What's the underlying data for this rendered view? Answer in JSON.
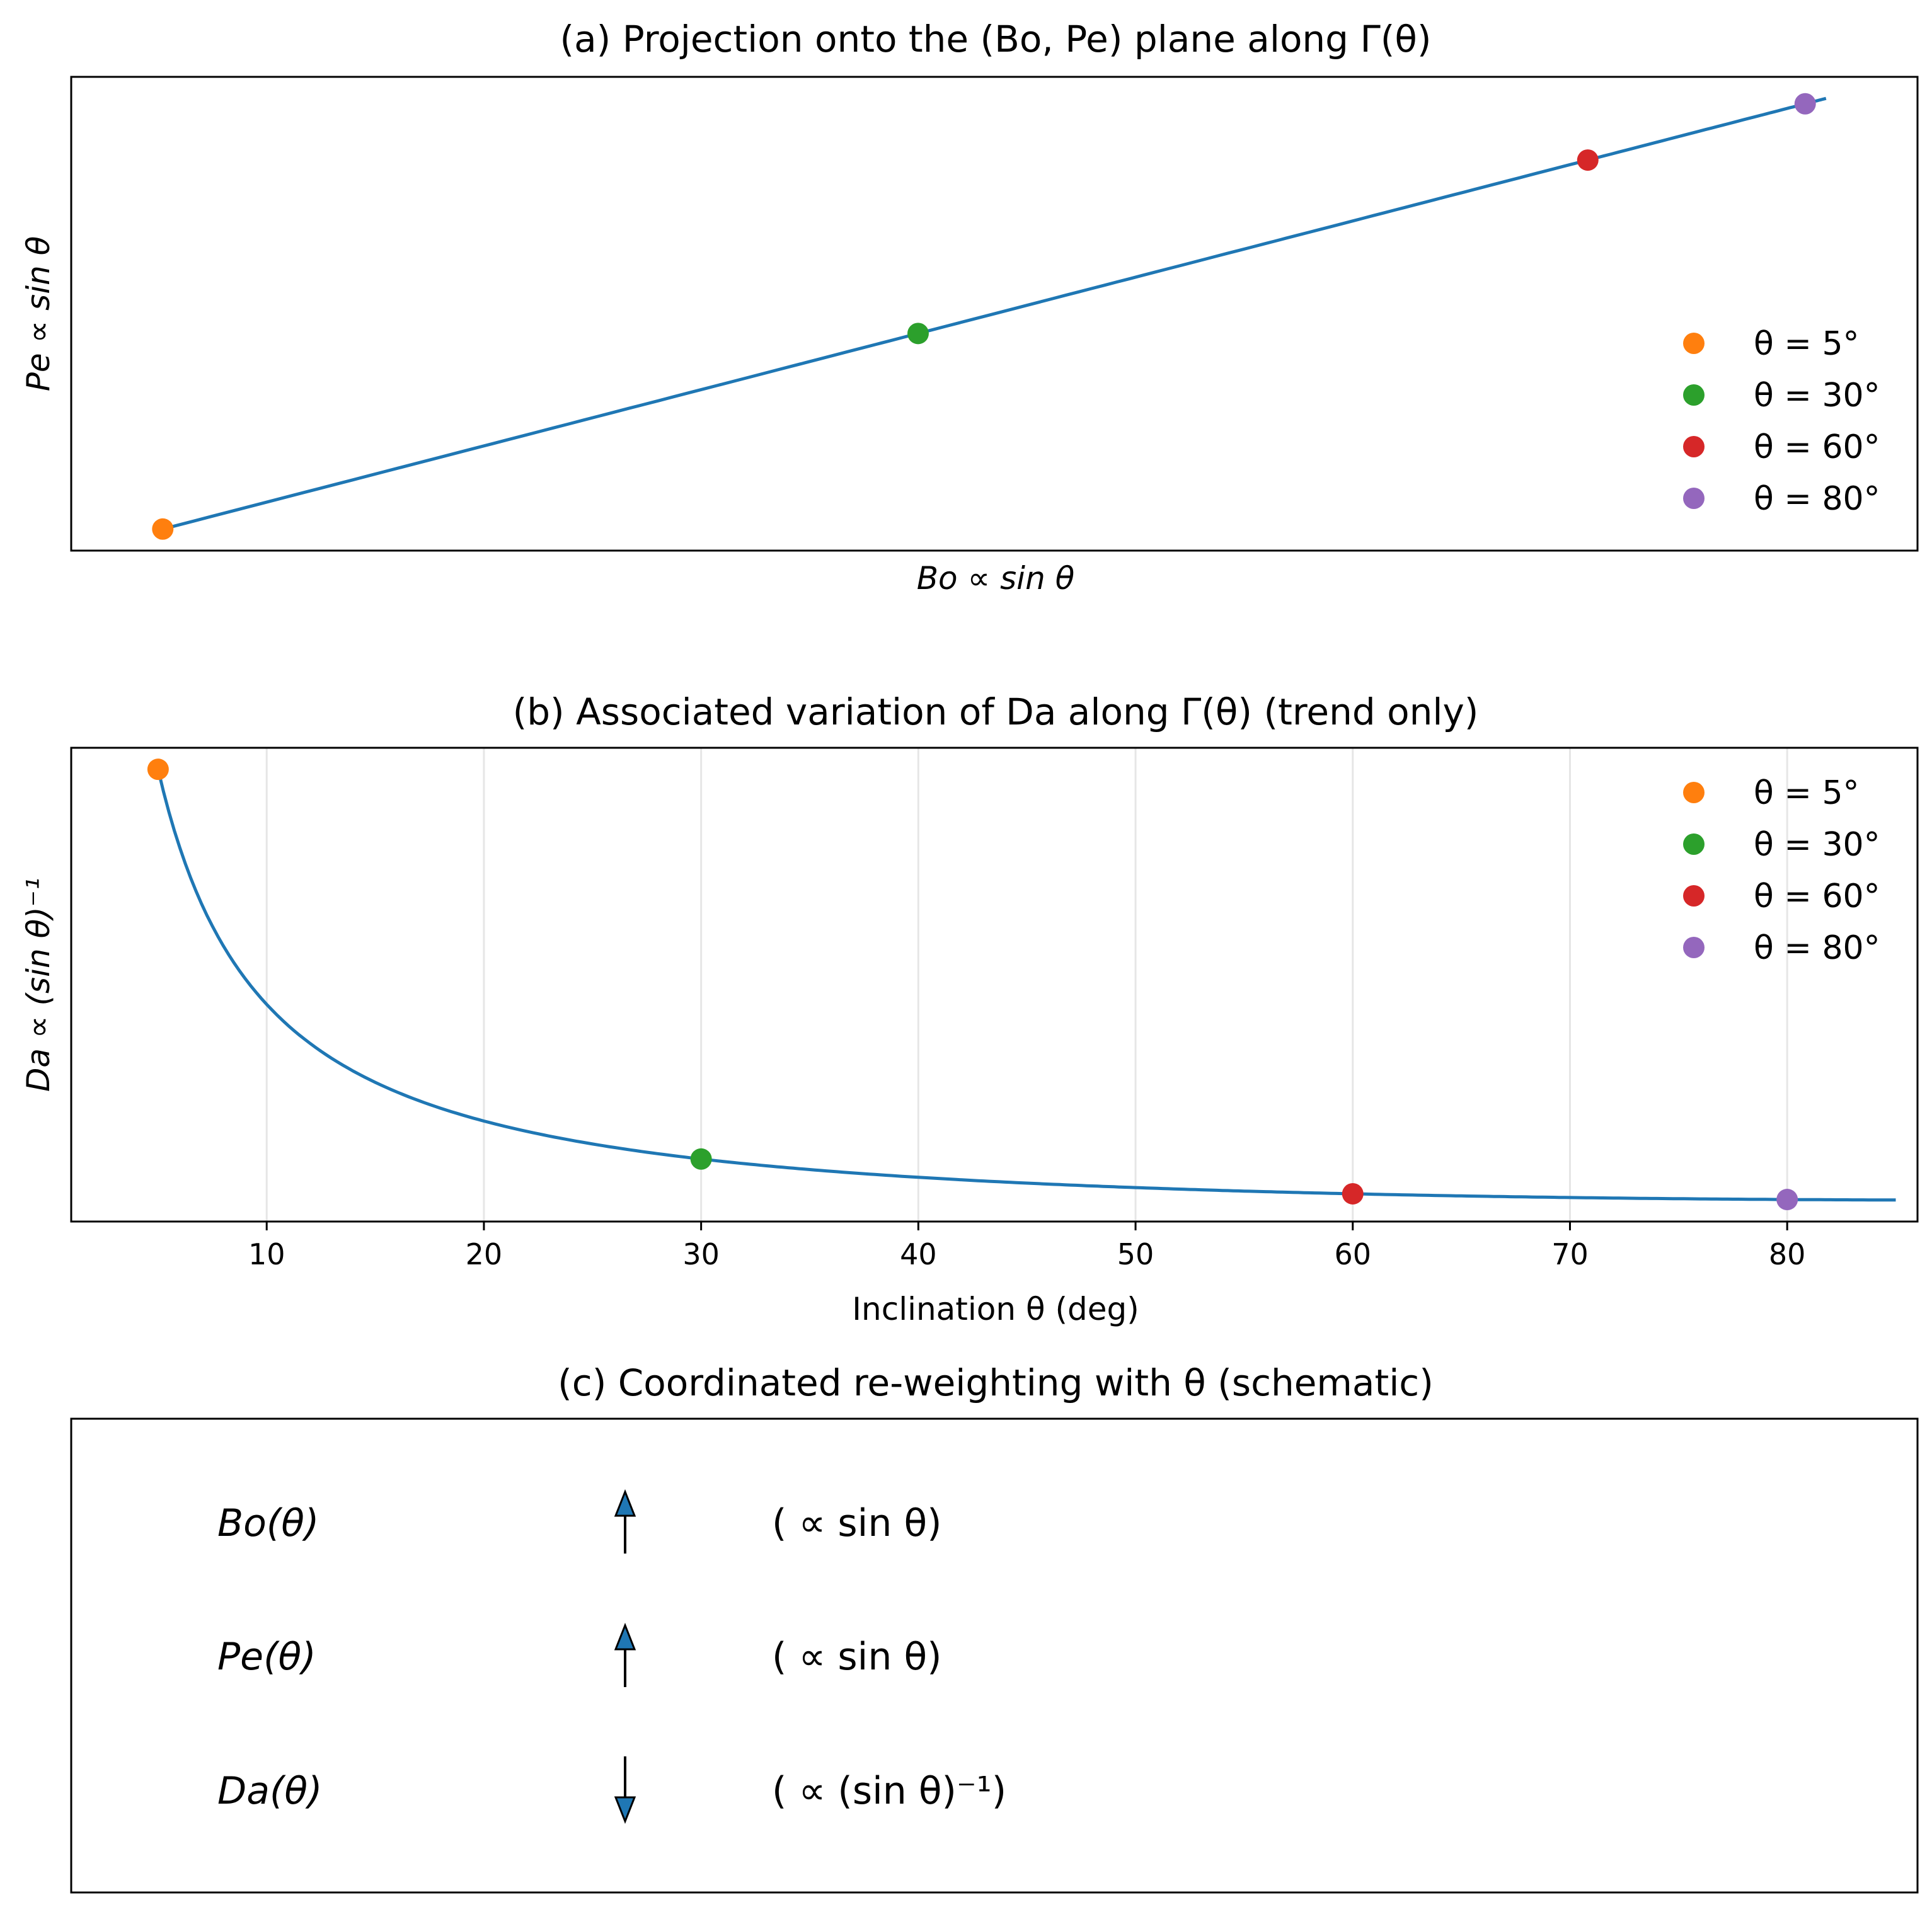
{
  "chart_data": [
    {
      "panel": "a",
      "type": "line",
      "title": "(a) Projection onto the (Bo, Pe) plane along Γ(θ)",
      "xlabel": "Bo ∝ sin θ",
      "ylabel": "Pe ∝ sin θ",
      "x_ticks": "none",
      "y_ticks": "none",
      "grid": false,
      "line_color": "#1f77b4",
      "curve": {
        "theta_deg_range": [
          5,
          85
        ],
        "x": "sin θ",
        "y": "sin θ"
      },
      "legend_position": "right",
      "markers": [
        {
          "label": "θ = 5°",
          "theta": 5,
          "x": 0.0872,
          "y": 0.0872,
          "color": "#ff7f0e"
        },
        {
          "label": "θ = 30°",
          "theta": 30,
          "x": 0.5,
          "y": 0.5,
          "color": "#2ca02c"
        },
        {
          "label": "θ = 60°",
          "theta": 60,
          "x": 0.866,
          "y": 0.866,
          "color": "#d62728"
        },
        {
          "label": "θ = 80°",
          "theta": 80,
          "x": 0.9848,
          "y": 0.9848,
          "color": "#9467bd"
        }
      ]
    },
    {
      "panel": "b",
      "type": "line",
      "title": "(b) Associated variation of Da along Γ(θ) (trend only)",
      "xlabel": "Inclination θ (deg)",
      "ylabel": "Da ∝ (sin θ)⁻¹",
      "x_ticks": [
        10,
        20,
        30,
        40,
        50,
        60,
        70,
        80
      ],
      "xlim": [
        1,
        86
      ],
      "y_ticks": "none",
      "grid": "vertical",
      "line_color": "#1f77b4",
      "curve": {
        "theta_deg_range": [
          5,
          85
        ],
        "y": "1 / sin θ"
      },
      "legend_position": "top-right",
      "markers": [
        {
          "label": "θ = 5°",
          "x": 5,
          "y": 11.474,
          "color": "#ff7f0e"
        },
        {
          "label": "θ = 30°",
          "x": 30,
          "y": 2.0,
          "color": "#2ca02c"
        },
        {
          "label": "θ = 60°",
          "x": 60,
          "y": 1.1547,
          "color": "#d62728"
        },
        {
          "label": "θ = 80°",
          "x": 80,
          "y": 1.0154,
          "color": "#9467bd"
        }
      ]
    }
  ],
  "schematic": {
    "title": "(c) Coordinated re-weighting with θ (schematic)",
    "rows": [
      {
        "name": "Bo(θ)",
        "direction": "up",
        "relation": "( ∝  sin θ)"
      },
      {
        "name": "Pe(θ)",
        "direction": "up",
        "relation": "( ∝  sin θ)"
      },
      {
        "name": "Da(θ)",
        "direction": "down",
        "relation": "( ∝  (sin θ)⁻¹)"
      }
    ],
    "arrow_color": "#1f77b4"
  }
}
